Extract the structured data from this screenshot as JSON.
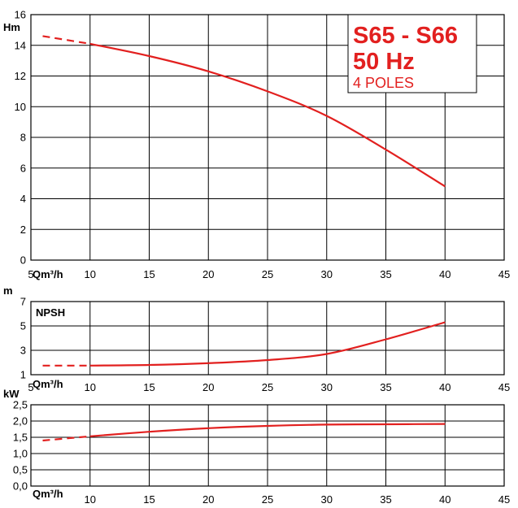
{
  "header": {
    "model": "S65 - S66",
    "frequency": "50 Hz",
    "poles": "4 POLES"
  },
  "colors": {
    "curve": "#e2201f",
    "grid": "#000000"
  },
  "chart_data": [
    {
      "type": "line",
      "id": "head",
      "ylabel": "Hm",
      "xlabel": "Qm³/h",
      "xlim": [
        5,
        45
      ],
      "ylim": [
        0,
        16
      ],
      "x_ticks": [
        5,
        10,
        15,
        20,
        25,
        30,
        35,
        40,
        45
      ],
      "x_tick_labels": [
        "5",
        "10",
        "15",
        "20",
        "25",
        "30",
        "35",
        "40",
        "45"
      ],
      "y_ticks": [
        0,
        2,
        4,
        6,
        8,
        10,
        12,
        14,
        16
      ],
      "y_tick_labels": [
        "0",
        "2",
        "4",
        "6",
        "8",
        "10",
        "12",
        "14",
        "16"
      ],
      "grid": true,
      "series": [
        {
          "style": "dashed",
          "x": [
            6,
            10
          ],
          "y": [
            14.6,
            14.1
          ]
        },
        {
          "style": "solid",
          "x": [
            10,
            15,
            20,
            25,
            30,
            35,
            40
          ],
          "y": [
            14.1,
            13.3,
            12.3,
            11.0,
            9.4,
            7.2,
            4.8
          ]
        }
      ]
    },
    {
      "type": "line",
      "id": "npsh",
      "label": "NPSH",
      "ylabel": "m",
      "xlabel": "Qm³/h",
      "xlim": [
        5,
        45
      ],
      "ylim": [
        1,
        7
      ],
      "x_ticks": [
        5,
        10,
        15,
        20,
        25,
        30,
        35,
        40,
        45
      ],
      "x_tick_labels": [
        "5",
        "10",
        "15",
        "20",
        "25",
        "30",
        "35",
        "40",
        "45"
      ],
      "y_ticks": [
        1,
        3,
        5,
        7
      ],
      "y_tick_labels": [
        "1",
        "3",
        "5",
        "7"
      ],
      "grid": true,
      "series": [
        {
          "style": "dashed",
          "x": [
            6,
            10
          ],
          "y": [
            1.75,
            1.75
          ]
        },
        {
          "style": "solid",
          "x": [
            10,
            15,
            20,
            25,
            30,
            35,
            40
          ],
          "y": [
            1.75,
            1.8,
            1.95,
            2.2,
            2.7,
            3.9,
            5.3
          ]
        }
      ]
    },
    {
      "type": "line",
      "id": "power",
      "ylabel": "kW",
      "xlabel": "Qm³/h",
      "xlim": [
        5,
        45
      ],
      "ylim": [
        0,
        2.5
      ],
      "x_ticks": [
        5,
        10,
        15,
        20,
        25,
        30,
        35,
        40,
        45
      ],
      "x_tick_labels": [
        "",
        "10",
        "15",
        "20",
        "25",
        "30",
        "35",
        "40",
        "45"
      ],
      "y_ticks": [
        0,
        0.5,
        1.0,
        1.5,
        2.0,
        2.5
      ],
      "y_tick_labels": [
        "0,0",
        "0,5",
        "1,0",
        "1,5",
        "2,0",
        "2,5"
      ],
      "grid": true,
      "series": [
        {
          "style": "dashed",
          "x": [
            6,
            10
          ],
          "y": [
            1.4,
            1.53
          ]
        },
        {
          "style": "solid",
          "x": [
            10,
            15,
            20,
            25,
            30,
            35,
            40
          ],
          "y": [
            1.53,
            1.67,
            1.78,
            1.85,
            1.89,
            1.9,
            1.91
          ]
        }
      ]
    }
  ]
}
